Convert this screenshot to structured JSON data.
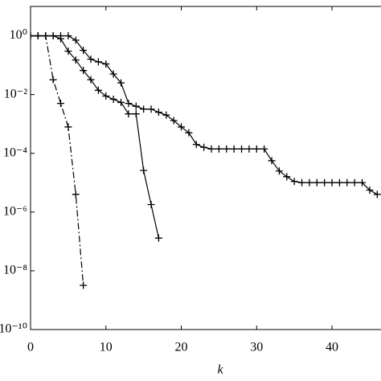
{
  "chart_data": {
    "type": "line",
    "yscale": "log",
    "xlabel": "k",
    "xlim": [
      0,
      46.5
    ],
    "xticks": [
      0,
      10,
      20,
      30,
      40
    ],
    "ylim": [
      1e-10,
      10
    ],
    "yticks": [
      {
        "value": 1,
        "label": "10⁰"
      },
      {
        "value": 0.01,
        "label": "10⁻²"
      },
      {
        "value": 0.0001,
        "label": "10⁻⁴"
      },
      {
        "value": 1e-06,
        "label": "10⁻⁶"
      },
      {
        "value": 1e-08,
        "label": "10⁻⁸"
      },
      {
        "value": 1e-10,
        "label": "10⁻¹⁰"
      }
    ],
    "series": [
      {
        "color": "#000000",
        "dash": "dash-dot",
        "marker": "+",
        "x": [
          0,
          1,
          2,
          3,
          4,
          5,
          6,
          7
        ],
        "values": [
          1,
          1,
          1,
          0.032,
          0.005,
          0.00079,
          4e-06,
          3.2e-09
        ]
      },
      {
        "color": "#000000",
        "dash": "solid",
        "marker": "+",
        "x": [
          0,
          1,
          2,
          3,
          4,
          5,
          6,
          7,
          8,
          9,
          10,
          11,
          12,
          13,
          14,
          15,
          16,
          17
        ],
        "values": [
          1,
          1,
          1,
          1,
          0.79,
          0.3,
          0.15,
          0.066,
          0.032,
          0.014,
          0.0089,
          0.0069,
          0.0054,
          0.0022,
          0.0022,
          2.6e-05,
          1.8e-06,
          1.3e-07
        ]
      },
      {
        "color": "#000000",
        "dash": "solid",
        "marker": "+",
        "x": [
          0,
          1,
          2,
          3,
          4,
          5,
          6,
          7,
          8,
          9,
          10,
          11,
          12,
          13,
          14,
          15,
          16,
          17,
          18,
          19,
          20,
          21,
          22,
          23,
          24,
          25,
          26,
          27,
          28,
          29,
          30,
          31,
          32,
          33,
          34,
          35,
          36,
          37,
          38,
          39,
          40,
          41,
          42,
          43,
          44,
          45,
          46
        ],
        "values": [
          1,
          1,
          1,
          1,
          1,
          1,
          0.71,
          0.32,
          0.16,
          0.13,
          0.11,
          0.05,
          0.025,
          0.005,
          0.004,
          0.0032,
          0.0032,
          0.0025,
          0.002,
          0.0013,
          0.00079,
          0.0005,
          0.0002,
          0.00016,
          0.00014,
          0.00014,
          0.00014,
          0.00014,
          0.00014,
          0.00014,
          0.00014,
          0.00014,
          5.6e-05,
          2.5e-05,
          1.6e-05,
          1.1e-05,
          1e-05,
          1e-05,
          1e-05,
          1e-05,
          1e-05,
          1e-05,
          1e-05,
          1e-05,
          1e-05,
          5.6e-06,
          4e-06
        ]
      }
    ]
  }
}
